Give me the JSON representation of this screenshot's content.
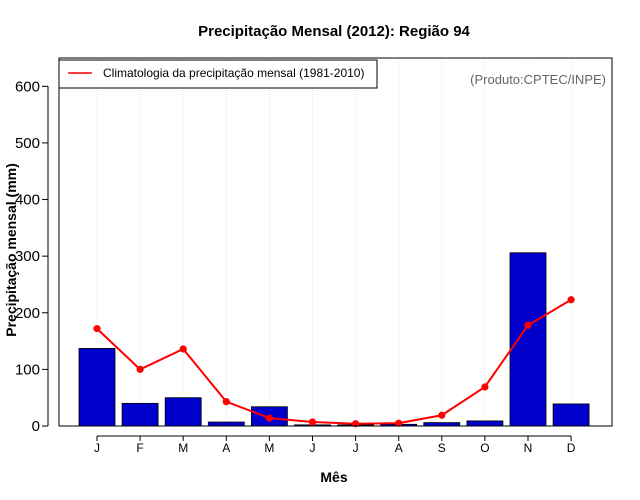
{
  "chart_data": {
    "type": "bar",
    "title": "Precipitação Mensal (2012): Região 94",
    "xlabel": "Mês",
    "ylabel": "Precipitação mensal (mm)",
    "credit": "(Produto:CPTEC/INPE)",
    "categories": [
      "J",
      "F",
      "M",
      "A",
      "M",
      "J",
      "J",
      "A",
      "S",
      "O",
      "N",
      "D"
    ],
    "ylim": [
      0,
      650
    ],
    "yticks": [
      0,
      100,
      200,
      300,
      400,
      500,
      600
    ],
    "grid": "vertical dotted",
    "legend_position": "top-left",
    "series": [
      {
        "name": "Precipitação mensal (2012)",
        "kind": "bar",
        "color": "#0000CC",
        "values": [
          137,
          40,
          50,
          7,
          34,
          2,
          2,
          3,
          6,
          9,
          306,
          39
        ]
      },
      {
        "name": "Climatologia da precipitação mensal (1981-2010)",
        "kind": "line",
        "color": "#FF0000",
        "values": [
          172,
          100,
          136,
          43,
          14,
          7,
          4,
          5,
          19,
          69,
          178,
          223
        ]
      }
    ]
  }
}
